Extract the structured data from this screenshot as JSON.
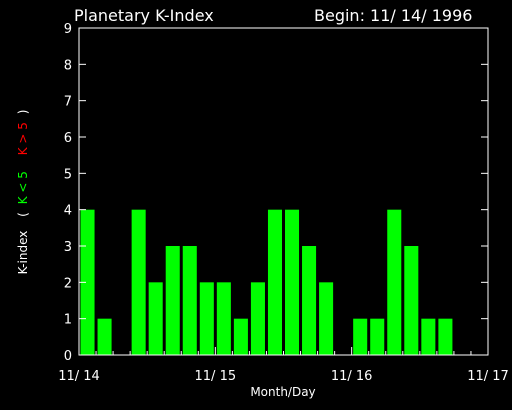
{
  "chart_data": {
    "type": "bar",
    "title": "Planetary K-Index",
    "subtitle": "Begin: 11/ 14/ 1996",
    "xlabel": "Month/Day",
    "ylabel_parts": {
      "prefix": "K-index",
      "open_paren": "(",
      "low": "K < 5",
      "high": "K > 5",
      "close_paren": ")"
    },
    "ylim": [
      0,
      9
    ],
    "yticks": [
      "0",
      "1",
      "2",
      "3",
      "4",
      "5",
      "6",
      "7",
      "8",
      "9"
    ],
    "xticks": [
      "11/ 14",
      "11/ 15",
      "11/ 16",
      "11/ 17"
    ],
    "bins_per_day": 8,
    "values": [
      4,
      1,
      0,
      4,
      2,
      3,
      3,
      2,
      2,
      1,
      2,
      4,
      4,
      3,
      2,
      0,
      1,
      1,
      4,
      3,
      1,
      1,
      0,
      0
    ],
    "colors": {
      "low": "#00ff00",
      "high": "#ff0000",
      "axis": "#ffffff",
      "background": "#000000"
    }
  }
}
